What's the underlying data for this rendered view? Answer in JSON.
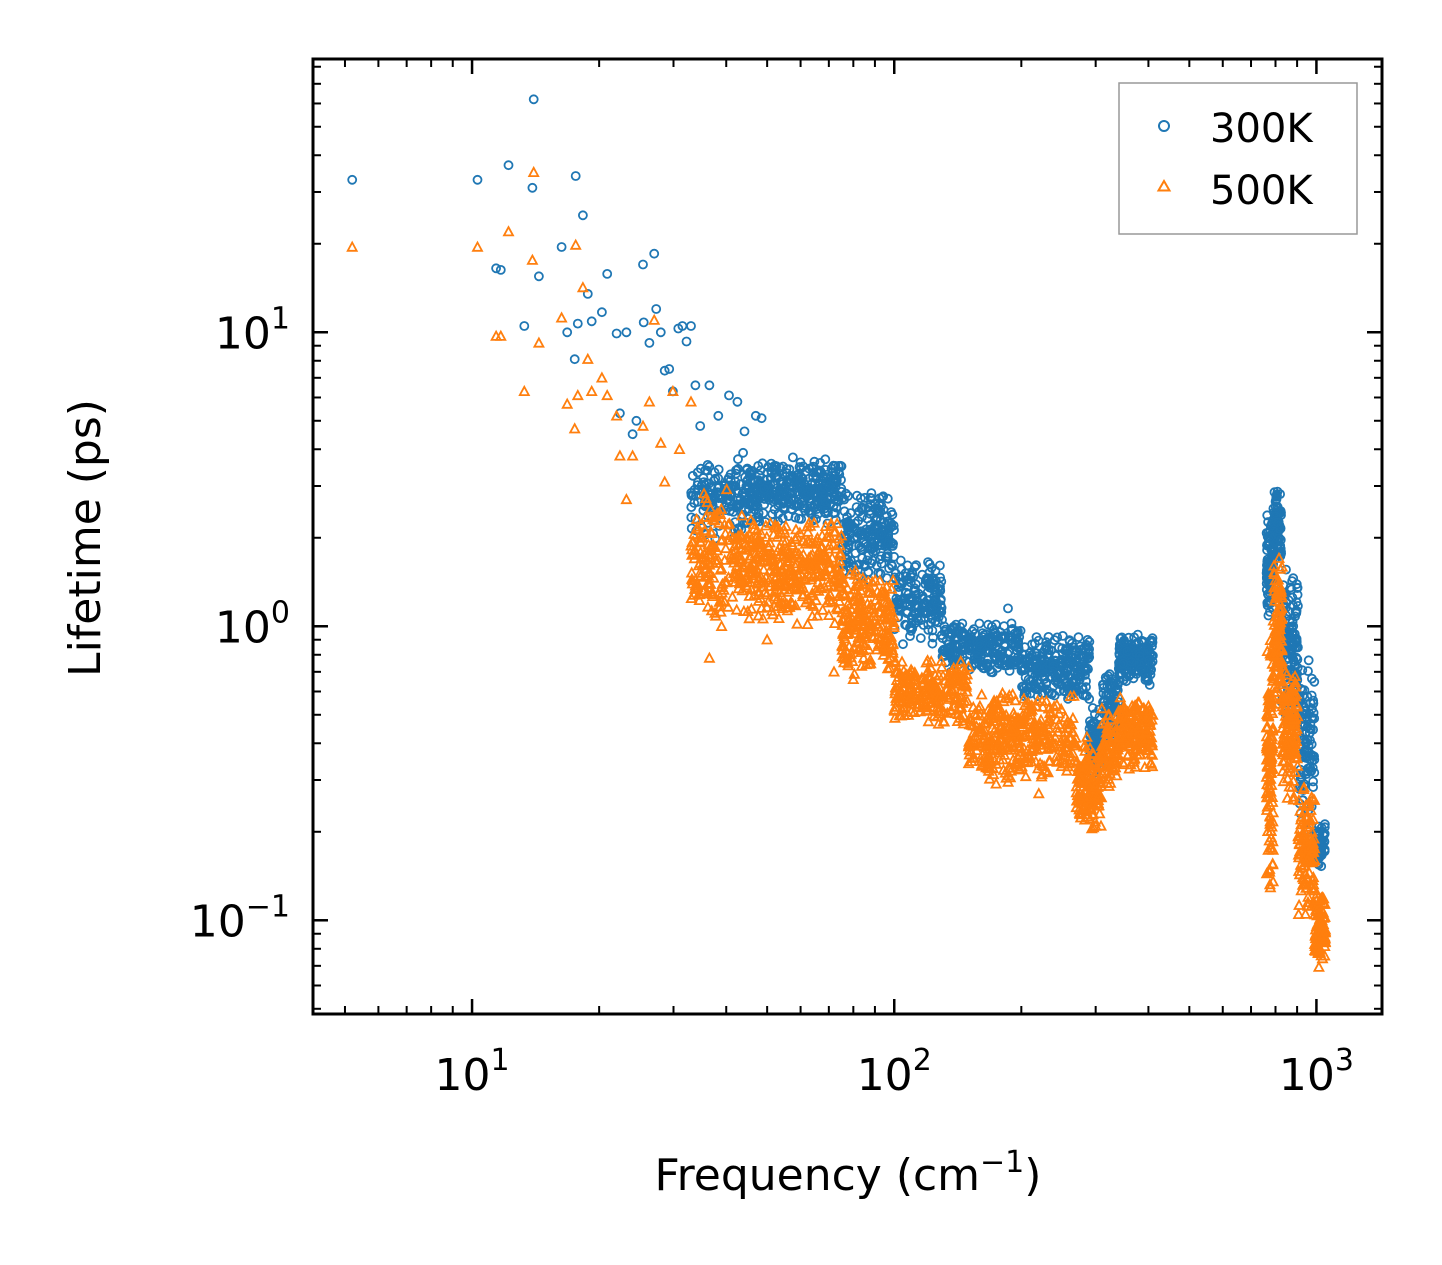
{
  "chart_data": {
    "type": "scatter",
    "title": "",
    "xlabel": "Frequency (cm",
    "xlabel_sup": "−1",
    "xlabel_close": ")",
    "ylabel": "Lifetime (ps)",
    "xscale": "log",
    "yscale": "log",
    "xlim": [
      4.2,
      1430
    ],
    "ylim": [
      0.048,
      85
    ],
    "x_ticks": [
      {
        "value": 10,
        "base": "10",
        "exp": "1"
      },
      {
        "value": 100,
        "base": "10",
        "exp": "2"
      },
      {
        "value": 1000,
        "base": "10",
        "exp": "3"
      }
    ],
    "y_ticks": [
      {
        "value": 0.1,
        "base": "10",
        "exp": "−1"
      },
      {
        "value": 1,
        "base": "10",
        "exp": "0"
      },
      {
        "value": 10,
        "base": "10",
        "exp": "1"
      }
    ],
    "legend_position": "top-right",
    "series": [
      {
        "name": "300K",
        "marker": "circle",
        "color": "#1f77b4",
        "points": [
          [
            5.2,
            33
          ],
          [
            10.3,
            33
          ],
          [
            11.4,
            16.5
          ],
          [
            11.7,
            16.3
          ],
          [
            12.2,
            37
          ],
          [
            13.3,
            10.5
          ],
          [
            13.9,
            31
          ],
          [
            14.0,
            62
          ],
          [
            14.4,
            15.5
          ],
          [
            16.3,
            19.5
          ],
          [
            16.8,
            10.0
          ],
          [
            17.5,
            8.1
          ],
          [
            17.6,
            34
          ],
          [
            17.8,
            10.7
          ],
          [
            18.3,
            25
          ],
          [
            18.8,
            13.5
          ],
          [
            19.2,
            10.9
          ],
          [
            20.3,
            11.7
          ],
          [
            20.9,
            15.8
          ],
          [
            22.0,
            9.9
          ],
          [
            22.4,
            5.3
          ],
          [
            23.2,
            10.0
          ],
          [
            24.0,
            4.5
          ],
          [
            24.5,
            5.0
          ],
          [
            25.4,
            17.0
          ],
          [
            25.5,
            10.8
          ],
          [
            26.3,
            9.2
          ],
          [
            27.0,
            18.5
          ],
          [
            27.3,
            12.0
          ],
          [
            28.0,
            10.0
          ],
          [
            28.6,
            7.4
          ],
          [
            29.3,
            7.5
          ],
          [
            29.9,
            6.3
          ],
          [
            30.8,
            10.3
          ],
          [
            31.5,
            10.5
          ],
          [
            32.2,
            9.3
          ],
          [
            33.0,
            10.5
          ],
          [
            33.8,
            6.6
          ],
          [
            34.7,
            4.8
          ],
          [
            36.5,
            6.6
          ],
          [
            38.3,
            5.2
          ],
          [
            40.6,
            6.1
          ],
          [
            42.5,
            5.8
          ],
          [
            44.2,
            4.6
          ],
          [
            47.0,
            5.2
          ],
          [
            48.5,
            5.1
          ],
          [
            75.0,
            3.5
          ],
          [
            98.5,
            2.2
          ],
          [
            186,
            1.15
          ],
          [
            232,
            0.92
          ],
          [
            286,
            0.58
          ]
        ]
      },
      {
        "name": "500K",
        "marker": "triangle",
        "color": "#ff7f0e",
        "points": [
          [
            5.2,
            19.5
          ],
          [
            10.3,
            19.5
          ],
          [
            11.4,
            9.7
          ],
          [
            11.7,
            9.7
          ],
          [
            12.2,
            22
          ],
          [
            13.3,
            6.3
          ],
          [
            13.9,
            17.6
          ],
          [
            14.0,
            35
          ],
          [
            14.4,
            9.2
          ],
          [
            16.3,
            11.2
          ],
          [
            16.8,
            5.7
          ],
          [
            17.5,
            4.7
          ],
          [
            17.6,
            19.8
          ],
          [
            17.8,
            6.1
          ],
          [
            18.3,
            14.2
          ],
          [
            18.8,
            8.1
          ],
          [
            19.2,
            6.3
          ],
          [
            20.3,
            7.0
          ],
          [
            20.9,
            6.1
          ],
          [
            22.0,
            5.2
          ],
          [
            22.4,
            3.8
          ],
          [
            23.2,
            2.7
          ],
          [
            24.0,
            3.8
          ],
          [
            25.4,
            4.8
          ],
          [
            26.3,
            5.8
          ],
          [
            27.0,
            11.0
          ],
          [
            28.0,
            4.2
          ],
          [
            28.6,
            3.1
          ],
          [
            29.9,
            6.3
          ],
          [
            31.0,
            4.0
          ],
          [
            33.0,
            5.8
          ],
          [
            36.5,
            0.78
          ],
          [
            39.0,
            1.0
          ],
          [
            43.0,
            1.45
          ],
          [
            50.0,
            0.9
          ],
          [
            60.0,
            1.35
          ],
          [
            72.0,
            0.7
          ],
          [
            80.0,
            0.66
          ],
          [
            100,
            0.52
          ],
          [
            150,
            0.39
          ],
          [
            186,
            0.45
          ],
          [
            220,
            0.27
          ],
          [
            232,
            0.45
          ],
          [
            286,
            0.42
          ]
        ]
      }
    ],
    "clusters": [
      {
        "series": "300K",
        "segments": [
          {
            "x0": 33,
            "x1": 45,
            "ylo": 1.9,
            "yhi": 4.0,
            "n": 150
          },
          {
            "x0": 45,
            "x1": 75,
            "ylo": 2.2,
            "yhi": 3.8,
            "n": 360
          },
          {
            "x0": 75,
            "x1": 100,
            "ylo": 1.4,
            "yhi": 3.0,
            "n": 200
          },
          {
            "x0": 100,
            "x1": 130,
            "ylo": 0.85,
            "yhi": 1.7,
            "n": 170
          },
          {
            "x0": 130,
            "x1": 200,
            "ylo": 0.68,
            "yhi": 1.05,
            "n": 260
          },
          {
            "x0": 200,
            "x1": 290,
            "ylo": 0.55,
            "yhi": 0.95,
            "n": 260
          },
          {
            "x0": 290,
            "x1": 312,
            "ylo": 0.3,
            "yhi": 0.55,
            "n": 80
          },
          {
            "x0": 312,
            "x1": 340,
            "ylo": 0.4,
            "yhi": 0.75,
            "n": 80
          },
          {
            "x0": 340,
            "x1": 410,
            "ylo": 0.62,
            "yhi": 0.96,
            "n": 180
          },
          {
            "x0": 762,
            "x1": 790,
            "ylo": 1.0,
            "yhi": 2.5,
            "n": 90
          },
          {
            "x0": 790,
            "x1": 825,
            "ylo": 1.6,
            "yhi": 2.95,
            "n": 90
          },
          {
            "x0": 825,
            "x1": 905,
            "ylo": 0.45,
            "yhi": 1.6,
            "n": 140
          },
          {
            "x0": 905,
            "x1": 990,
            "ylo": 0.2,
            "yhi": 0.8,
            "n": 110
          },
          {
            "x0": 990,
            "x1": 1050,
            "ylo": 0.15,
            "yhi": 0.22,
            "n": 70
          }
        ]
      },
      {
        "series": "500K",
        "segments": [
          {
            "x0": 33,
            "x1": 42,
            "ylo": 0.95,
            "yhi": 3.0,
            "n": 140
          },
          {
            "x0": 42,
            "x1": 75,
            "ylo": 1.0,
            "yhi": 2.4,
            "n": 400
          },
          {
            "x0": 75,
            "x1": 100,
            "ylo": 0.65,
            "yhi": 1.6,
            "n": 220
          },
          {
            "x0": 100,
            "x1": 150,
            "ylo": 0.45,
            "yhi": 0.8,
            "n": 230
          },
          {
            "x0": 150,
            "x1": 270,
            "ylo": 0.28,
            "yhi": 0.62,
            "n": 360
          },
          {
            "x0": 270,
            "x1": 310,
            "ylo": 0.19,
            "yhi": 0.42,
            "n": 130
          },
          {
            "x0": 310,
            "x1": 340,
            "ylo": 0.28,
            "yhi": 0.55,
            "n": 80
          },
          {
            "x0": 340,
            "x1": 410,
            "ylo": 0.32,
            "yhi": 0.6,
            "n": 170
          },
          {
            "x0": 762,
            "x1": 790,
            "ylo": 0.12,
            "yhi": 1.0,
            "n": 120
          },
          {
            "x0": 790,
            "x1": 830,
            "ylo": 0.5,
            "yhi": 1.75,
            "n": 110
          },
          {
            "x0": 830,
            "x1": 905,
            "ylo": 0.25,
            "yhi": 0.75,
            "n": 130
          },
          {
            "x0": 905,
            "x1": 990,
            "ylo": 0.1,
            "yhi": 0.3,
            "n": 110
          },
          {
            "x0": 990,
            "x1": 1050,
            "ylo": 0.068,
            "yhi": 0.13,
            "n": 90
          }
        ]
      }
    ]
  }
}
